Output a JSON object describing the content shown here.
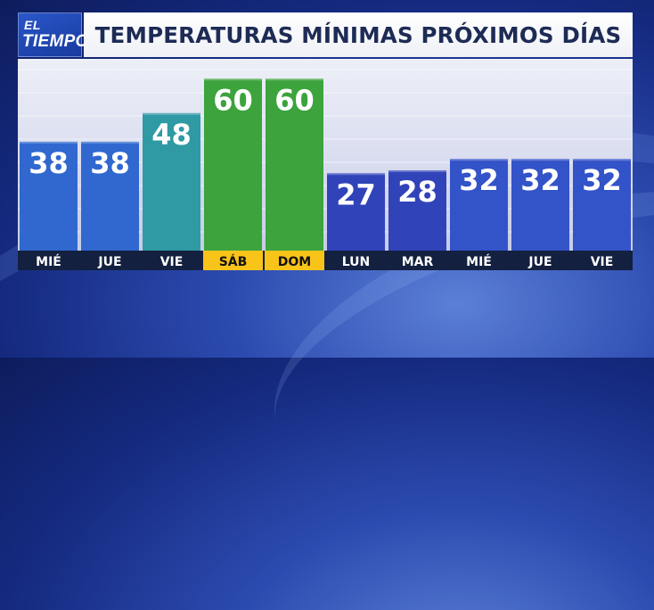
{
  "brand": {
    "logo_line1": "EL",
    "logo_line2": "TIEMPO"
  },
  "title": "TEMPERATURAS MÍNIMAS PRÓXIMOS DÍAS",
  "chart_data": {
    "type": "bar",
    "title": "TEMPERATURAS MÍNIMAS PRÓXIMOS DÍAS",
    "xlabel": "",
    "ylabel": "",
    "ylim": [
      0,
      66
    ],
    "grid": true,
    "categories": [
      "MIÉ",
      "JUE",
      "VIE",
      "SÁB",
      "DOM",
      "LUN",
      "MAR",
      "MIÉ",
      "JUE",
      "VIE"
    ],
    "values": [
      38,
      38,
      48,
      60,
      60,
      27,
      28,
      32,
      32,
      32
    ],
    "bar_colors": [
      "#3068cf",
      "#3068cf",
      "#2f9aa4",
      "#3ca33d",
      "#3ca33d",
      "#3143b8",
      "#3143b8",
      "#3353c8",
      "#3353c8",
      "#3353c8"
    ],
    "label_backgrounds": [
      "#13203f",
      "#13203f",
      "#13203f",
      "#f9c41a",
      "#f9c41a",
      "#13203f",
      "#13203f",
      "#13203f",
      "#13203f",
      "#13203f"
    ],
    "label_colors": [
      "#ffffff",
      "#ffffff",
      "#ffffff",
      "#111111",
      "#111111",
      "#ffffff",
      "#ffffff",
      "#ffffff",
      "#ffffff",
      "#ffffff"
    ]
  }
}
